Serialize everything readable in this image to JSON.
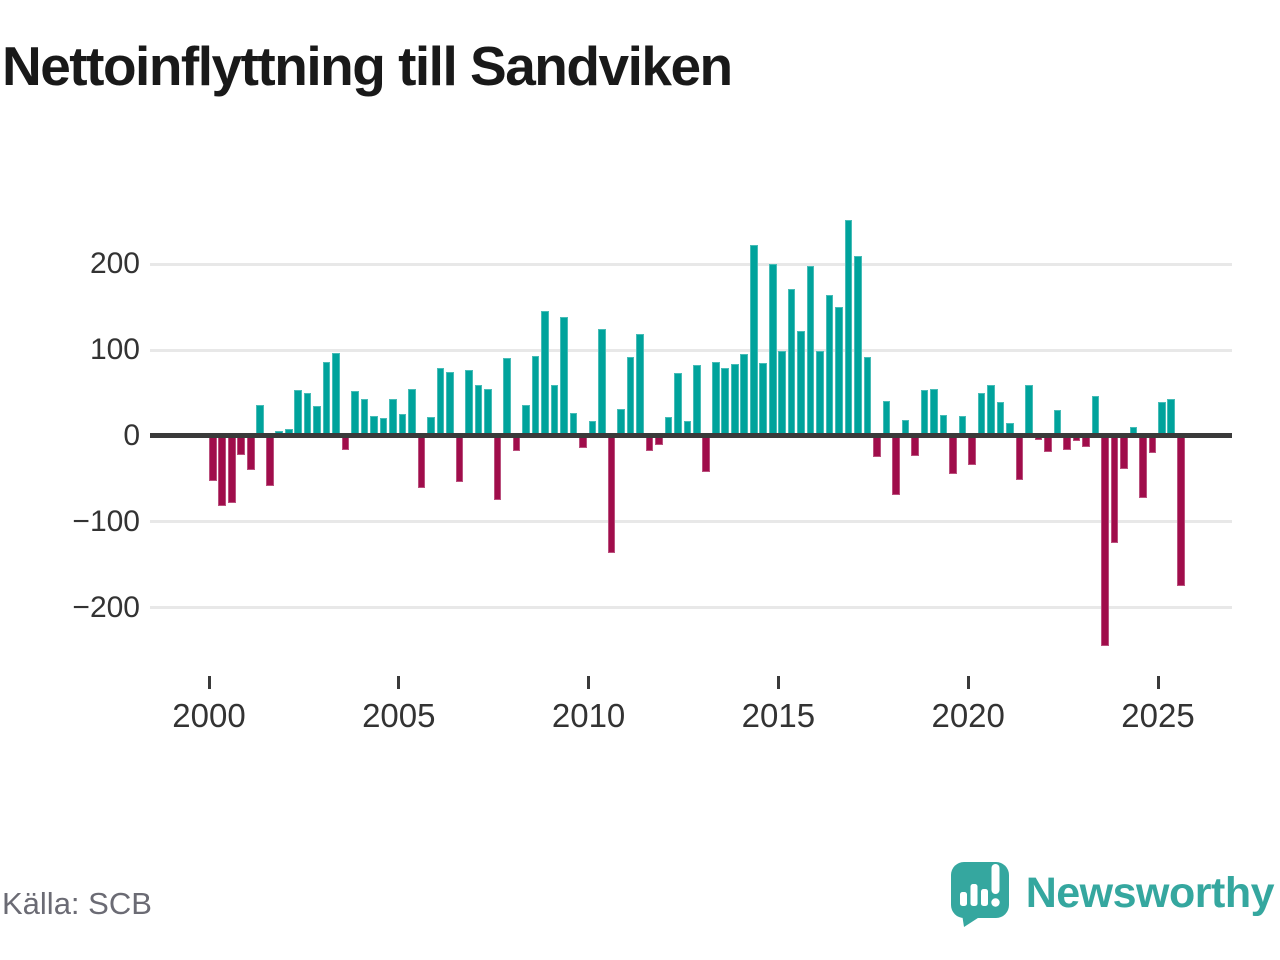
{
  "header": {
    "title": "Nettoinflyttning till Sandviken"
  },
  "footer": {
    "source": "Källa: SCB",
    "brand": "Newsworthy"
  },
  "colors": {
    "positive": "#00a39c",
    "negative": "#a00d4b",
    "grid": "#e8e8e8",
    "zero_line": "#3a3a3a",
    "axis_text": "#333333",
    "title_text": "#191919",
    "source_text": "#6b6b74",
    "brand_teal": "#35a79f"
  },
  "chart_data": {
    "type": "bar",
    "title": "Nettoinflyttning till Sandviken",
    "frequency": "quarterly",
    "period_start": "2000 Q1",
    "period_end": "2025 Q3",
    "values": [
      -52,
      -82,
      -78,
      -22,
      -40,
      36,
      -58,
      6,
      8,
      53,
      50,
      35,
      86,
      97,
      -16,
      52,
      43,
      23,
      21,
      43,
      26,
      55,
      -60,
      22,
      79,
      74,
      -54,
      77,
      59,
      55,
      -75,
      91,
      -17,
      36,
      93,
      145,
      59,
      138,
      27,
      -14,
      17,
      124,
      -136,
      31,
      92,
      119,
      -17,
      -10,
      22,
      73,
      17,
      83,
      -42,
      86,
      79,
      84,
      95,
      222,
      85,
      200,
      99,
      171,
      122,
      198,
      99,
      164,
      150,
      252,
      209,
      92,
      -24,
      41,
      -69,
      19,
      -23,
      53,
      55,
      25,
      -44,
      23,
      -34,
      50,
      59,
      39,
      15,
      -51,
      59,
      -5,
      -19,
      30,
      -16,
      -6,
      -13,
      46,
      -245,
      -125,
      -38,
      11,
      -72,
      -20,
      39,
      43,
      -175
    ],
    "yticks": [
      {
        "value": 200,
        "label": "200"
      },
      {
        "value": 100,
        "label": "100"
      },
      {
        "value": 0,
        "label": "0"
      },
      {
        "value": -100,
        "label": "−100"
      },
      {
        "value": -200,
        "label": "−200"
      }
    ],
    "xticks": [
      {
        "value": 2000,
        "label": "2000"
      },
      {
        "value": 2005,
        "label": "2005"
      },
      {
        "value": 2010,
        "label": "2010"
      },
      {
        "value": 2015,
        "label": "2015"
      },
      {
        "value": 2020,
        "label": "2020"
      },
      {
        "value": 2025,
        "label": "2025"
      }
    ],
    "ylim": [
      -260,
      265
    ],
    "grid": "horizontal",
    "legend": "none",
    "positive_color": "#00a39c",
    "negative_color": "#a00d4b"
  }
}
